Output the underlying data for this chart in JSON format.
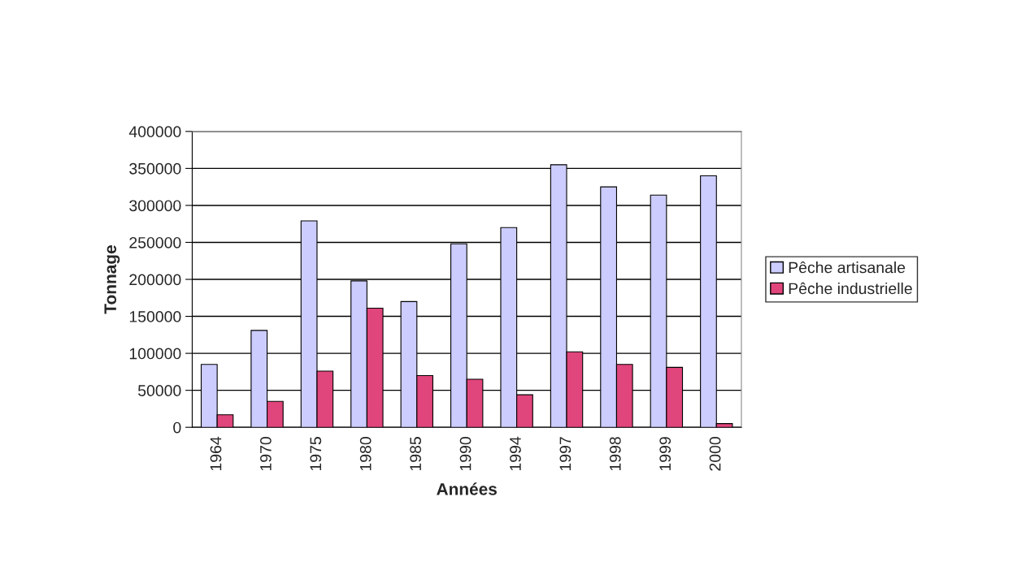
{
  "chart_data": {
    "type": "bar",
    "xlabel": "Années",
    "ylabel": "Tonnage",
    "categories": [
      "1964",
      "1970",
      "1975",
      "1980",
      "1985",
      "1990",
      "1994",
      "1997",
      "1998",
      "1999",
      "2000"
    ],
    "series": [
      {
        "name": "Pêche artisanale",
        "color": "#ccccff",
        "values": [
          85000,
          131000,
          279000,
          198000,
          170000,
          248000,
          270000,
          355000,
          325000,
          314000,
          340000
        ]
      },
      {
        "name": "Pêche industrielle",
        "color": "#e0457b",
        "values": [
          17000,
          35000,
          76000,
          161000,
          70000,
          65000,
          44000,
          102000,
          85000,
          81000,
          5000
        ]
      }
    ],
    "ylim": [
      0,
      400000
    ],
    "yticks": [
      0,
      50000,
      100000,
      150000,
      200000,
      250000,
      300000,
      350000,
      400000
    ],
    "grid": "y",
    "legend": "right"
  }
}
